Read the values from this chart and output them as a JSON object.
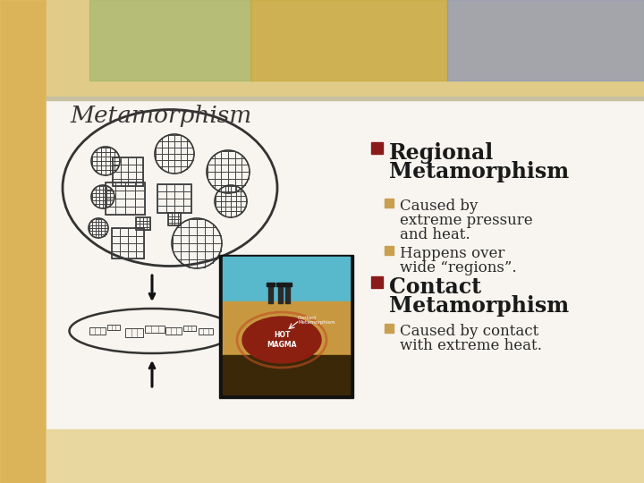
{
  "title": "Metamorphism",
  "slide_bg": "#e8d9b8",
  "left_strip_color": "#d4a84b",
  "content_bg": "#f5f2ec",
  "white_panel_bg": "#ffffff",
  "header_top_color": "#d8c87a",
  "header_mid_color": "#b8c88a",
  "header_right_color": "#b0b8d0",
  "main_bullet_color": "#8b1a1a",
  "sub_bullet_color": "#c8a050",
  "regional_title_line1": "Regional",
  "regional_title_line2": "Metamorphism",
  "regional_sub1_line1": "Caused by",
  "regional_sub1_line2": "extreme pressure",
  "regional_sub1_line3": "and heat.",
  "regional_sub2_line1": "Happens over",
  "regional_sub2_line2": "wide “regions”.",
  "contact_title_line1": "Contact",
  "contact_title_line2": "Metamorphism",
  "contact_sub1_line1": "Caused by contact",
  "contact_sub1_line2": "with extreme heat.",
  "text_color": "#2a2a2a",
  "title_color": "#3a3535",
  "bold_text_color": "#1a1a1a"
}
